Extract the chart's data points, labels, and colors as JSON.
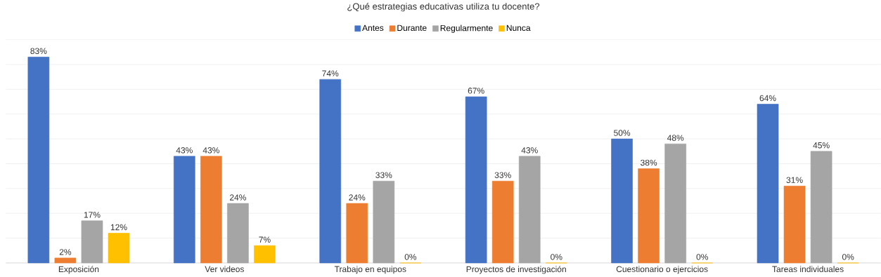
{
  "chart_data": {
    "type": "bar",
    "title": "¿Qué estrategias educativas utiliza tu docente?",
    "categories": [
      "Exposición",
      "Ver videos",
      "Trabajo en equipos",
      "Proyectos de investigación",
      "Cuestionario o ejercicios",
      "Tareas individuales"
    ],
    "series": [
      {
        "name": "Antes",
        "color": "#4472c4",
        "values": [
          83,
          43,
          74,
          67,
          50,
          64
        ],
        "value_labels": [
          "83%",
          "43%",
          "74%",
          "67%",
          "50%",
          "64%"
        ]
      },
      {
        "name": "Durante",
        "color": "#ed7d31",
        "values": [
          2,
          43,
          24,
          33,
          38,
          31
        ],
        "value_labels": [
          "2%",
          "43%",
          "24%",
          "33%",
          "38%",
          "31%"
        ]
      },
      {
        "name": "Regularmente",
        "color": "#a5a5a5",
        "values": [
          17,
          24,
          33,
          43,
          48,
          45
        ],
        "value_labels": [
          "17%",
          "24%",
          "33%",
          "43%",
          "48%",
          "45%"
        ]
      },
      {
        "name": "Nunca",
        "color": "#ffc000",
        "values": [
          12,
          7,
          0,
          0,
          0,
          0
        ],
        "value_labels": [
          "12%",
          "7%",
          "0%",
          "0%",
          "0%",
          "0%"
        ]
      }
    ],
    "ylim": [
      0,
      90
    ],
    "yticks": [
      {
        "value": 0,
        "label": null
      },
      {
        "value": 10,
        "label": null
      },
      {
        "value": 20,
        "label": null
      },
      {
        "value": 30,
        "label": null
      },
      {
        "value": 40,
        "label": null
      },
      {
        "value": 50,
        "label": null
      },
      {
        "value": 60,
        "label": null
      },
      {
        "value": 70,
        "label": null
      },
      {
        "value": 80,
        "label": null
      },
      {
        "value": 90,
        "label": null
      }
    ],
    "grid": "y",
    "legend": "top",
    "tick_labels": "x"
  }
}
